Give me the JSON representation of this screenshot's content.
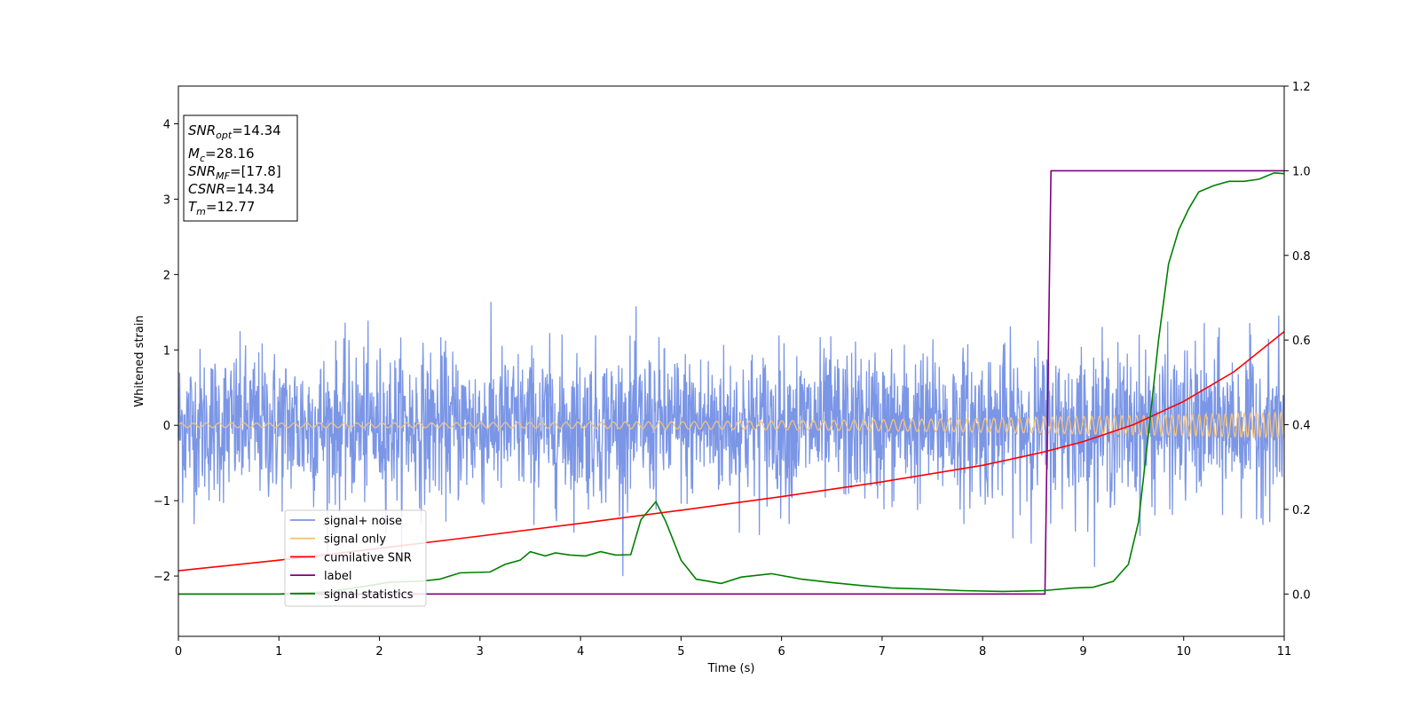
{
  "chart_data": {
    "type": "line",
    "xlabel": "Time (s)",
    "ylabel": "Whitened strain",
    "xlim": [
      0,
      11
    ],
    "ylim": [
      -2.8,
      4.5
    ],
    "y2lim": [
      -0.1,
      1.2
    ],
    "xticks": [
      0,
      1,
      2,
      3,
      4,
      5,
      6,
      7,
      8,
      9,
      10,
      11
    ],
    "yticks": [
      -2,
      -1,
      0,
      1,
      2,
      3,
      4
    ],
    "y2ticks": [
      0.0,
      0.2,
      0.4,
      0.6,
      0.8,
      1.0,
      1.2
    ],
    "grid": false,
    "legend_placement": "lower-left",
    "info_box": [
      {
        "base": "SNR",
        "sub": "opt",
        "value": "=14.34"
      },
      {
        "base": "M",
        "sub": "c",
        "value": "=28.16"
      },
      {
        "base": "SNR",
        "sub": "MF",
        "value": "=[17.8]"
      },
      {
        "base": "CSNR",
        "sub": "",
        "value": "=14.34"
      },
      {
        "base": "T",
        "sub": "m",
        "value": "=12.77"
      }
    ],
    "series": [
      {
        "name": "signal+ noise",
        "color": "#7b96e6",
        "axis": "left",
        "kind": "noise",
        "description_values": {
          "std": 0.5,
          "peak": 2.12
        }
      },
      {
        "name": "signal only",
        "color": "#f5c27a",
        "axis": "left",
        "kind": "chirp",
        "amplitude_start": 0.03,
        "amplitude_end": 0.17
      },
      {
        "name": "cumilative SNR",
        "color": "#ff0000",
        "axis": "right",
        "x": [
          0,
          1,
          2,
          3,
          4,
          5,
          6,
          7,
          8,
          8.6,
          9,
          9.5,
          10,
          10.5,
          11
        ],
        "values": [
          0.055,
          0.08,
          0.108,
          0.137,
          0.167,
          0.198,
          0.23,
          0.265,
          0.304,
          0.335,
          0.36,
          0.4,
          0.455,
          0.525,
          0.62
        ]
      },
      {
        "name": "label",
        "color": "#800080",
        "axis": "right",
        "x": [
          0,
          8.62,
          8.68,
          11
        ],
        "values": [
          0.0,
          0.0,
          1.0,
          1.0
        ]
      },
      {
        "name": "signal statistics",
        "color": "#008000",
        "axis": "right",
        "x": [
          0,
          1.0,
          1.5,
          1.9,
          2.1,
          2.4,
          2.6,
          2.8,
          3.1,
          3.25,
          3.4,
          3.5,
          3.65,
          3.75,
          3.9,
          4.05,
          4.2,
          4.35,
          4.5,
          4.6,
          4.75,
          4.85,
          5.0,
          5.15,
          5.4,
          5.6,
          5.9,
          6.2,
          6.5,
          6.8,
          7.1,
          7.4,
          7.8,
          8.2,
          8.6,
          8.9,
          9.1,
          9.3,
          9.45,
          9.55,
          9.65,
          9.75,
          9.85,
          9.95,
          10.05,
          10.15,
          10.3,
          10.45,
          10.6,
          10.75,
          10.9,
          11.0
        ],
        "values": [
          0.0,
          0.0,
          0.005,
          0.02,
          0.028,
          0.03,
          0.035,
          0.05,
          0.052,
          0.07,
          0.08,
          0.1,
          0.09,
          0.097,
          0.092,
          0.09,
          0.1,
          0.092,
          0.093,
          0.175,
          0.218,
          0.17,
          0.08,
          0.035,
          0.025,
          0.04,
          0.048,
          0.035,
          0.027,
          0.02,
          0.014,
          0.012,
          0.008,
          0.006,
          0.008,
          0.014,
          0.016,
          0.03,
          0.07,
          0.17,
          0.38,
          0.6,
          0.78,
          0.86,
          0.91,
          0.95,
          0.965,
          0.975,
          0.975,
          0.98,
          0.995,
          0.993
        ]
      }
    ]
  }
}
